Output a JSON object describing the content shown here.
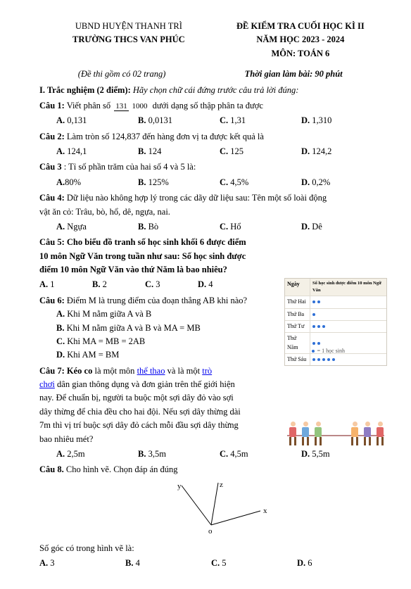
{
  "header": {
    "district": "UBND HUYỆN THANH TRÌ",
    "school": "TRƯỜNG THCS VAN PHÚC",
    "exam_title": "ĐỀ KIỂM TRA CUỐI HỌC KÌ II",
    "year": "NĂM HỌC 2023 - 2024",
    "subject": "MÔN: TOÁN 6",
    "pages_note": "(Đề thi gồm có 02 trang)",
    "duration": "Thời gian làm bài: 90 phút"
  },
  "section1": {
    "title": "I. Trắc nghiệm (2 điểm):",
    "instruction": "Hãy chọn chữ cái đứng trước câu trả lời đúng:"
  },
  "q1": {
    "label": "Câu 1:",
    "text_a": " Viết phân số ",
    "frac_num": "131",
    "frac_den": "1000",
    "text_b": " dưới dạng số thập phân ta được",
    "A": "A.",
    "A_val": " 0,131",
    "B": "B.",
    "B_val": " 0,0131",
    "C": "C.",
    "C_val": " 1,31",
    "D": "D.",
    "D_val": " 1,310"
  },
  "q2": {
    "label": "Câu 2: ",
    "text": " Làm tròn số 124,837 đến hàng đơn vị ta được kết quả là",
    "A": "A.",
    "A_val": " 124,1",
    "B": "B.",
    "B_val": " 124",
    "C": "C.",
    "C_val": " 125",
    "D": "D.",
    "D_val": " 124,2"
  },
  "q3": {
    "label": "Câu 3",
    "text": ": Tỉ số phần trăm của hai số 4 và 5 là:",
    "A": "A.",
    "A_val": "80%",
    "B": "B.",
    "B_val": " 125%",
    "C": "C.",
    "C_val": " 4,5%",
    "D": "D.",
    "D_val": " 0,2%"
  },
  "q4": {
    "label": "Câu 4:",
    "text_a": " Dữ liệu nào không hợp lý trong các dãy dữ liệu sau: Tên một số loài động",
    "text_b": "vật ăn cỏ: Trâu, bò, hổ, dê, ngựa, nai.",
    "A": "A.",
    "A_val": " Ngựa",
    "B": "B.",
    "B_val": " Bò",
    "C": "C.",
    "C_val": " Hổ",
    "D": "D.",
    "D_val": " Dê"
  },
  "q5": {
    "label": "Câu 5:",
    "text_a": " Cho biểu đồ tranh số học sinh khối 6 được điểm",
    "text_b": "10 môn Ngữ Văn trong tuần như sau: Số học sinh được",
    "text_c": "điểm 10 môn Ngữ Văn vào thứ Năm là bao nhiêu?",
    "A": "A.",
    "A_val": " 1",
    "B": "B.",
    "B_val": " 2",
    "C": "C.",
    "C_val": " 3",
    "D": "D.",
    "D_val": " 4"
  },
  "q6": {
    "label": "Câu 6:",
    "text": " Điểm M là trung điểm của đoạn thẳng AB khi nào?",
    "A": "A.",
    "A_val": " Khi M nằm giữa A và B",
    "B": "B.",
    "B_val": " Khi M nằm giữa A và  B và MA = MB",
    "C": "C.",
    "C_val": " Khi MA = MB = 2AB",
    "D": "D.",
    "D_val": " Khi AM = BM"
  },
  "q7": {
    "label": "Câu 7:",
    "text_a": " Kéo co",
    "text_b": " là một môn ",
    "link1": "thể thao",
    "text_c": " và là một ",
    "link2": "trò",
    "link3": "chơi",
    "text_d": " dân gian thông dụng và đơn giản trên thế giới hiện",
    "text_e": "nay. Để chuẩn bị, người ta buộc một sợi dây đỏ vào sợi",
    "text_f": "dây thừng để chia đều cho hai đội. Nếu sợi dây thừng dài",
    "text_g": "7m thì vị trí buộc sợi dây đỏ cách mỗi đầu sợi dây thừng",
    "text_h": "bao nhiêu mét?",
    "A": "A.",
    "A_val": " 2,5m",
    "B": "B.",
    "B_val": " 3,5m",
    "C": "C.",
    "C_val": " 4,5m",
    "D": "D.",
    "D_val": " 5,5m"
  },
  "q8": {
    "label": "Câu 8.",
    "text": " Cho hình vẽ. Chọn đáp án đúng",
    "footer": "Số góc có trong hình vẽ là:",
    "A": "A.",
    "A_val": " 3",
    "B": "B.",
    "B_val": " 4",
    "C": "C.",
    "C_val": " 5",
    "D": "D.",
    "D_val": " 6"
  },
  "chart": {
    "header_col1": "Ngày",
    "header_col2": "Số học sinh được điểm 10 môn Ngữ Văn",
    "rows": [
      {
        "day": "Thứ Hai",
        "dots": 2
      },
      {
        "day": "Thứ Ba",
        "dots": 1
      },
      {
        "day": "Thứ Tư",
        "dots": 3
      },
      {
        "day": "Thứ Năm",
        "dots": 2
      },
      {
        "day": "Thứ Sáu",
        "dots": 5
      }
    ],
    "legend": "= 1 học sinh"
  },
  "tug_colors": [
    "#e06666",
    "#6fa8dc",
    "#93c47d",
    "#f6b26b",
    "#8e7cc3",
    "#e06666"
  ],
  "angle_labels": {
    "y": "y",
    "z": "z",
    "o": "o",
    "x": "x"
  }
}
